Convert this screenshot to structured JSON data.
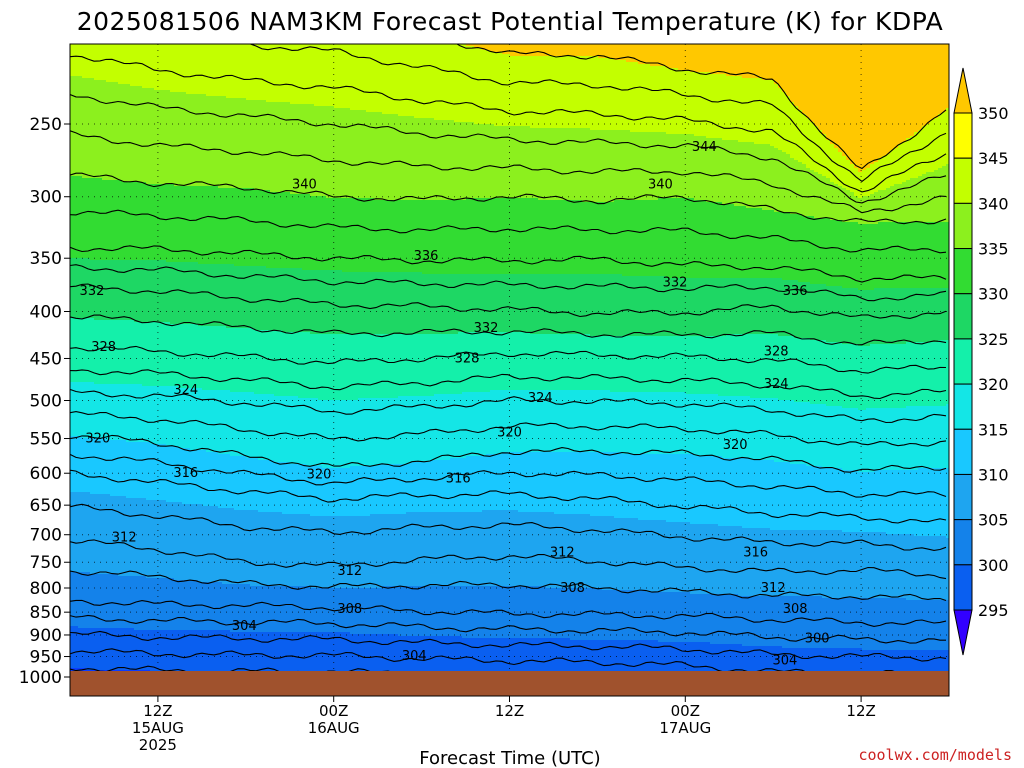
{
  "chart_data": {
    "type": "heatmap",
    "title": "2025081506 NAM3KM Forecast Potential Temperature (K) for KDPA",
    "xlabel": "Forecast Time (UTC)",
    "ylabel": "",
    "credit": "coolwx.com/models",
    "y_scale": "log",
    "y_range_hpa": [
      1000,
      195
    ],
    "y_ticks": [
      250,
      300,
      350,
      400,
      450,
      500,
      550,
      600,
      650,
      700,
      750,
      800,
      850,
      900,
      950,
      1000
    ],
    "x_range_hours": [
      0,
      60
    ],
    "x_ticks": [
      {
        "hour": 6,
        "lines": [
          "12Z",
          "15AUG",
          "2025"
        ]
      },
      {
        "hour": 18,
        "lines": [
          "00Z",
          "16AUG"
        ]
      },
      {
        "hour": 30,
        "lines": [
          "12Z"
        ]
      },
      {
        "hour": 42,
        "lines": [
          "00Z",
          "17AUG"
        ]
      },
      {
        "hour": 54,
        "lines": [
          "12Z"
        ]
      }
    ],
    "grid": "dotted",
    "colorbar": {
      "placement": "right",
      "levels": [
        295,
        300,
        305,
        310,
        315,
        320,
        325,
        330,
        335,
        340,
        345,
        350
      ],
      "colors": [
        "#3200ff",
        "#0a3cff",
        "#0a5ff0",
        "#1482ea",
        "#1ea5f0",
        "#19c8ff",
        "#14e6e6",
        "#14f0aa",
        "#1ed764",
        "#32dc32",
        "#8cf01e",
        "#c3ff00",
        "#ffff00",
        "#ffc800"
      ]
    },
    "ground_color": "#a0522d",
    "contour_interval": 2,
    "isentropes": [
      {
        "theta": 304,
        "p": [
          898,
          905,
          908,
          910,
          918,
          923,
          926,
          932,
          945,
          950,
          953
        ]
      },
      {
        "theta": 308,
        "p": [
          826,
          833,
          836,
          840,
          848,
          853,
          855,
          858,
          866,
          872,
          875
        ]
      },
      {
        "theta": 312,
        "p": [
          710,
          726,
          750,
          757,
          745,
          738,
          748,
          760,
          768,
          765,
          775
        ]
      },
      {
        "theta": 316,
        "p": [
          600,
          614,
          628,
          640,
          634,
          632,
          640,
          652,
          664,
          670,
          680
        ]
      },
      {
        "theta": 320,
        "p": [
          545,
          556,
          575,
          591,
          582,
          568,
          568,
          571,
          580,
          596,
          590
        ]
      },
      {
        "theta": 324,
        "p": [
          490,
          494,
          503,
          514,
          508,
          500,
          501,
          504,
          512,
          526,
          520
        ]
      },
      {
        "theta": 328,
        "p": [
          437,
          442,
          448,
          455,
          450,
          444,
          446,
          448,
          452,
          464,
          460
        ]
      },
      {
        "theta": 332,
        "p": [
          376,
          380,
          387,
          393,
          395,
          398,
          402,
          401,
          395,
          407,
          400
        ]
      },
      {
        "theta": 336,
        "p": [
          341,
          342,
          346,
          350,
          352,
          352,
          351,
          356,
          358,
          368,
          368
        ]
      },
      {
        "theta": 340,
        "p": [
          284,
          290,
          293,
          300,
          302,
          300,
          303,
          300,
          310,
          320,
          318
        ]
      },
      {
        "theta": 344,
        "p": [
          232,
          240,
          245,
          250,
          256,
          260,
          262,
          264,
          272,
          304,
          284
        ]
      }
    ],
    "contour_labels": [
      {
        "text": "340",
        "hour": 16.0,
        "p": 291
      },
      {
        "text": "340",
        "hour": 40.3,
        "p": 291
      },
      {
        "text": "344",
        "hour": 43.3,
        "p": 265
      },
      {
        "text": "336",
        "hour": 24.3,
        "p": 348
      },
      {
        "text": "332",
        "hour": 1.5,
        "p": 380
      },
      {
        "text": "332",
        "hour": 41.3,
        "p": 372
      },
      {
        "text": "336",
        "hour": 49.5,
        "p": 380
      },
      {
        "text": "332",
        "hour": 28.4,
        "p": 417
      },
      {
        "text": "328",
        "hour": 2.3,
        "p": 437
      },
      {
        "text": "328",
        "hour": 27.1,
        "p": 450
      },
      {
        "text": "328",
        "hour": 48.2,
        "p": 442
      },
      {
        "text": "324",
        "hour": 7.9,
        "p": 487
      },
      {
        "text": "324",
        "hour": 32.1,
        "p": 497
      },
      {
        "text": "324",
        "hour": 48.2,
        "p": 480
      },
      {
        "text": "320",
        "hour": 1.9,
        "p": 550
      },
      {
        "text": "320",
        "hour": 30.0,
        "p": 542
      },
      {
        "text": "320",
        "hour": 45.4,
        "p": 559
      },
      {
        "text": "320",
        "hour": 17.0,
        "p": 602
      },
      {
        "text": "316",
        "hour": 7.9,
        "p": 600
      },
      {
        "text": "316",
        "hour": 26.5,
        "p": 608
      },
      {
        "text": "312",
        "hour": 3.7,
        "p": 705
      },
      {
        "text": "312",
        "hour": 33.6,
        "p": 732
      },
      {
        "text": "316",
        "hour": 46.8,
        "p": 732
      },
      {
        "text": "312",
        "hour": 19.1,
        "p": 767
      },
      {
        "text": "308",
        "hour": 34.3,
        "p": 800
      },
      {
        "text": "312",
        "hour": 48.0,
        "p": 800
      },
      {
        "text": "308",
        "hour": 19.1,
        "p": 843
      },
      {
        "text": "308",
        "hour": 49.5,
        "p": 843
      },
      {
        "text": "304",
        "hour": 11.9,
        "p": 880
      },
      {
        "text": "300",
        "hour": 51.0,
        "p": 908
      },
      {
        "text": "304",
        "hour": 23.5,
        "p": 949
      },
      {
        "text": "304",
        "hour": 48.8,
        "p": 960
      }
    ]
  }
}
